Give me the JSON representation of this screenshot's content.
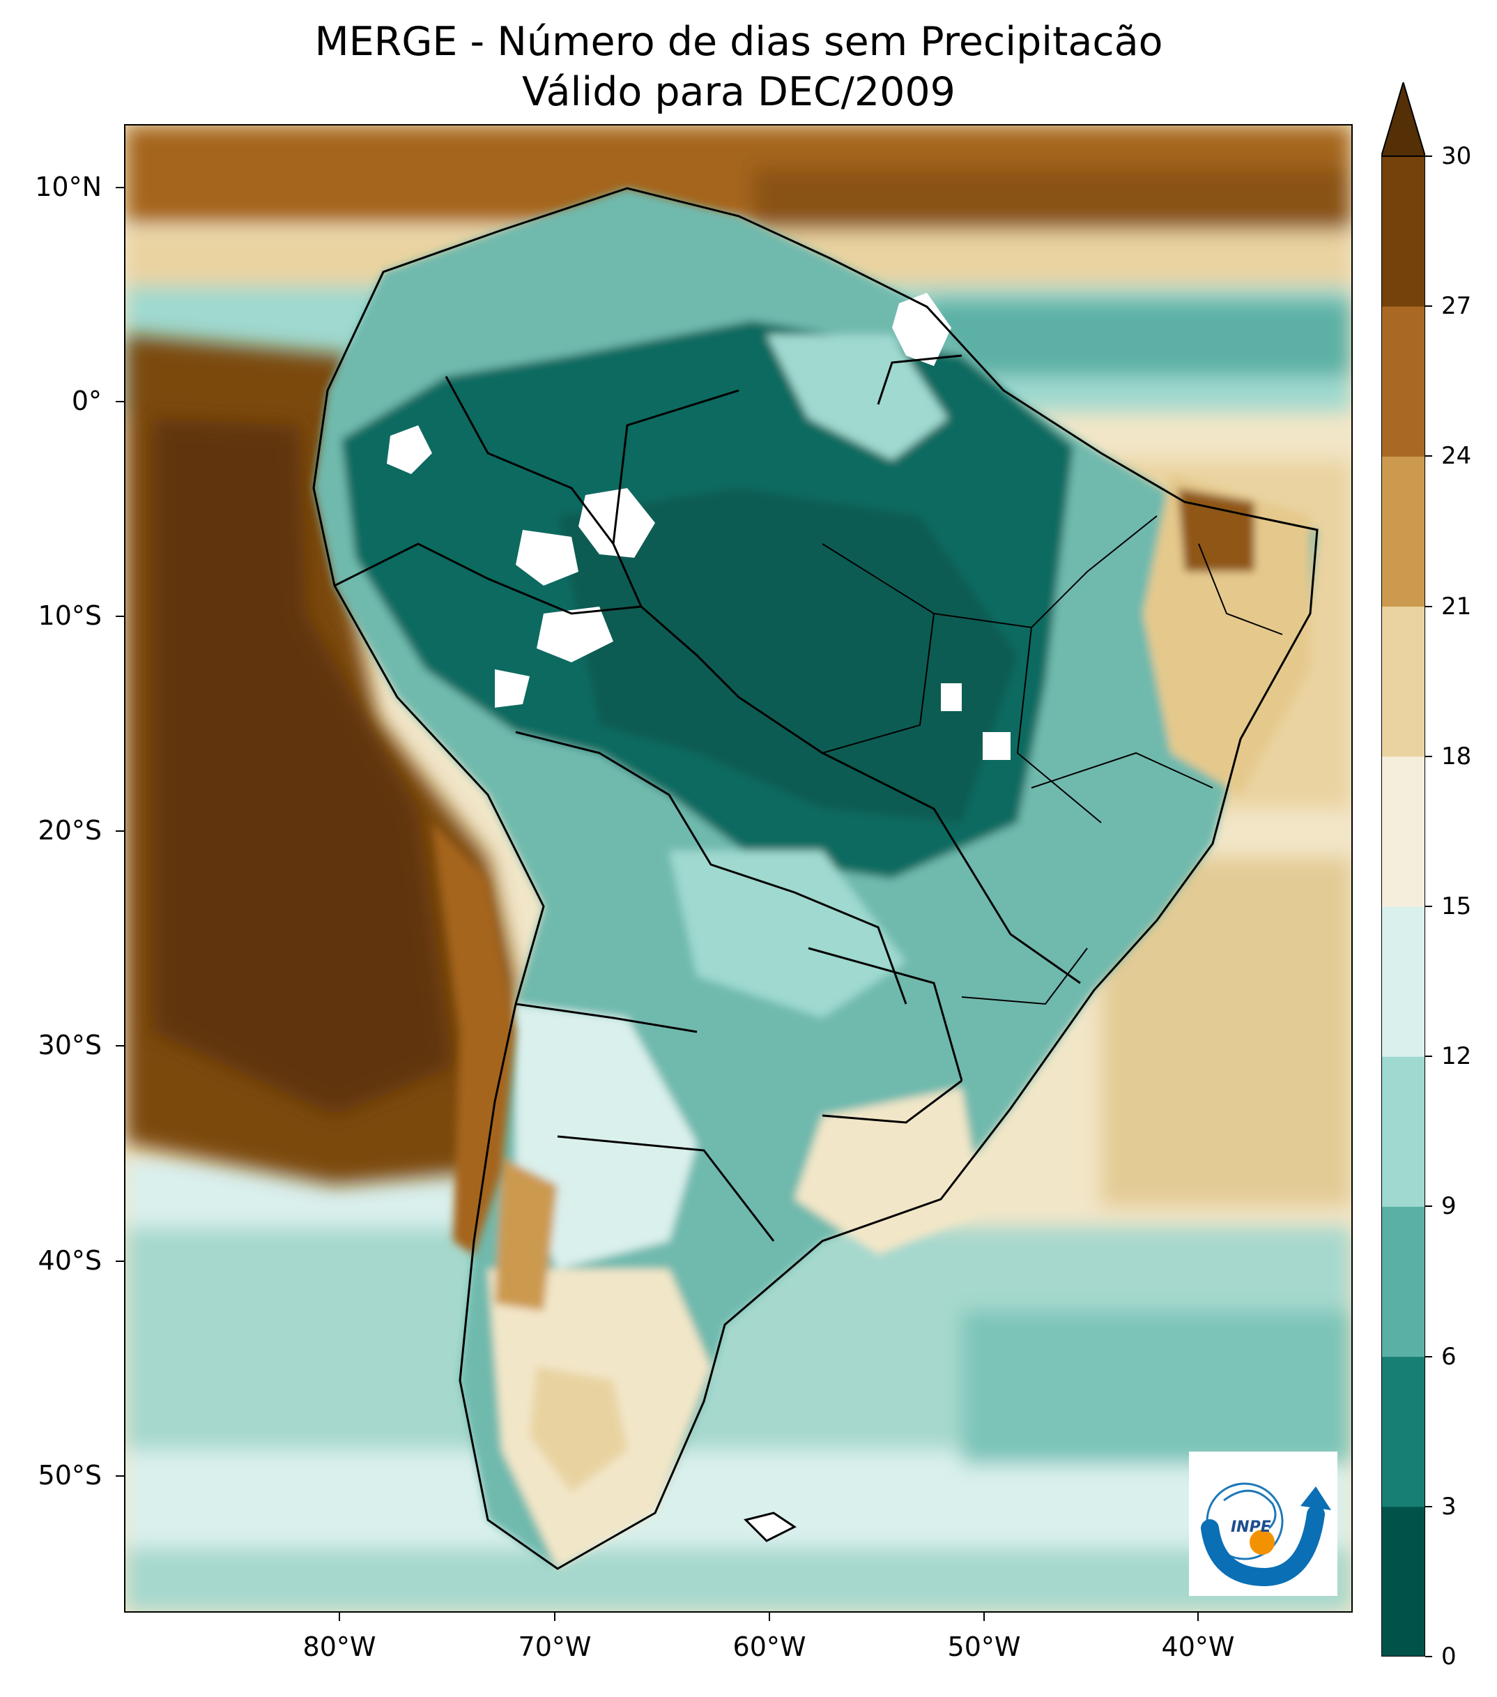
{
  "title": {
    "line1": "MERGE - Número de dias sem Precipitacão",
    "line2": "Válido para DEC/2009"
  },
  "axes": {
    "lat_ticks": [
      "10°N",
      "0°",
      "10°S",
      "20°S",
      "30°S",
      "40°S",
      "50°S"
    ],
    "lon_ticks": [
      "80°W",
      "70°W",
      "60°W",
      "50°W",
      "40°W"
    ]
  },
  "colorbar": {
    "labels": [
      "0",
      "3",
      "6",
      "9",
      "12",
      "15",
      "18",
      "21",
      "24",
      "27",
      "30"
    ],
    "colors": [
      "#01534a",
      "#177f73",
      "#5bb0a5",
      "#9fd9cf",
      "#daf0ed",
      "#f6eedc",
      "#ead3a0",
      "#cc9a4f",
      "#a96823",
      "#75420b",
      "#553006"
    ],
    "extend": "max"
  },
  "logo": {
    "text": "INPE"
  },
  "palette": {
    "ocean_north": "#cbeae3",
    "ocean_south": "#a6d8ce",
    "pacific_dry": "#7c4810",
    "amazon": "#0d6a60",
    "no_data": "#ffffff",
    "border": "#000000"
  }
}
